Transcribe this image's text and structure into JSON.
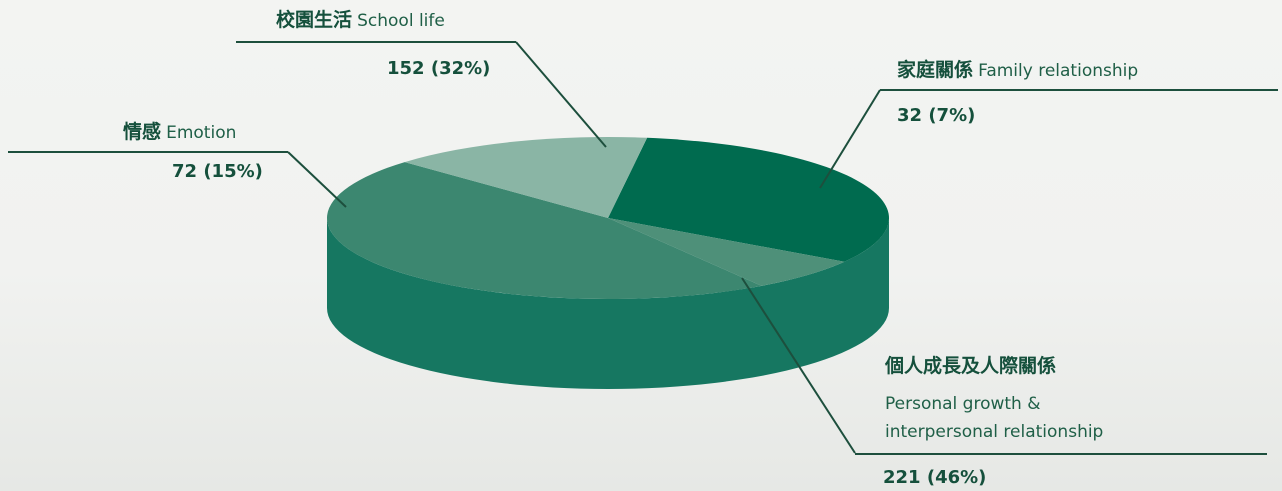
{
  "chart_data": {
    "type": "pie",
    "style": "3d",
    "slices": [
      {
        "zh": "校園生活",
        "en": "School life",
        "value": 152,
        "pct": "32%",
        "value_label": "152 (32%)",
        "color": "#006B4F"
      },
      {
        "zh": "家庭關係",
        "en": "Family relationship",
        "value": 32,
        "pct": "7%",
        "value_label": "32 (7%)",
        "color": "#4E9079"
      },
      {
        "zh": "個人成長及人際關係",
        "en": "Personal growth &",
        "en2": "interpersonal relationship",
        "value": 221,
        "pct": "46%",
        "value_label": "221 (46%)",
        "color": "#3C8770"
      },
      {
        "zh": "情感",
        "en": "Emotion",
        "value": 72,
        "pct": "15%",
        "value_label": "72 (15%)",
        "color": "#8AB5A5"
      }
    ],
    "side_color": "#167761"
  }
}
